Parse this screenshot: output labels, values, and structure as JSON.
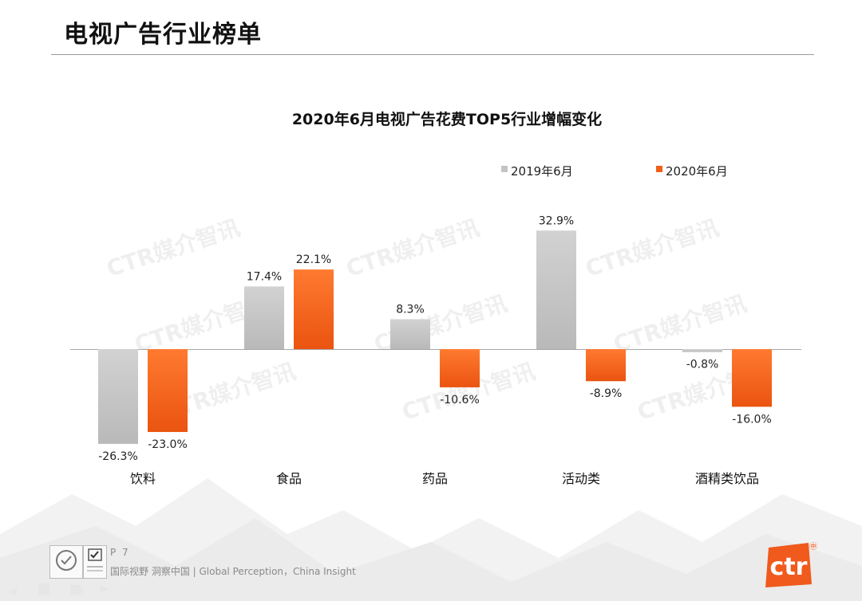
{
  "page": {
    "title": "电视广告行业榜单",
    "page_number": "P 7",
    "slogan": "国际视野  洞察中国 |  Global Perception，China Insight",
    "watermark": "CTR媒介智讯",
    "logo_text": "ctr",
    "logo_badge": "㊥"
  },
  "colors": {
    "series_2019": "#c3c3c3",
    "series_2020": "#f0601c",
    "logo": "#f05a1c"
  },
  "chart_data": {
    "type": "bar",
    "title": "2020年6月电视广告花费TOP5行业增幅变化",
    "categories": [
      "饮料",
      "食品",
      "药品",
      "活动类",
      "酒精类饮品"
    ],
    "series": [
      {
        "name": "2019年6月",
        "values": [
          -26.3,
          17.4,
          8.3,
          32.9,
          -0.8
        ],
        "labels": [
          "-26.3%",
          "17.4%",
          "8.3%",
          "32.9%",
          "-0.8%"
        ]
      },
      {
        "name": "2020年6月",
        "values": [
          -23.0,
          22.1,
          -10.6,
          -8.9,
          -16.0
        ],
        "labels": [
          "-23.0%",
          "22.1%",
          "-10.6%",
          "-8.9%",
          "-16.0%"
        ]
      }
    ],
    "legend_position": "top-right",
    "grid": false,
    "xlabel": "",
    "ylabel": ""
  }
}
